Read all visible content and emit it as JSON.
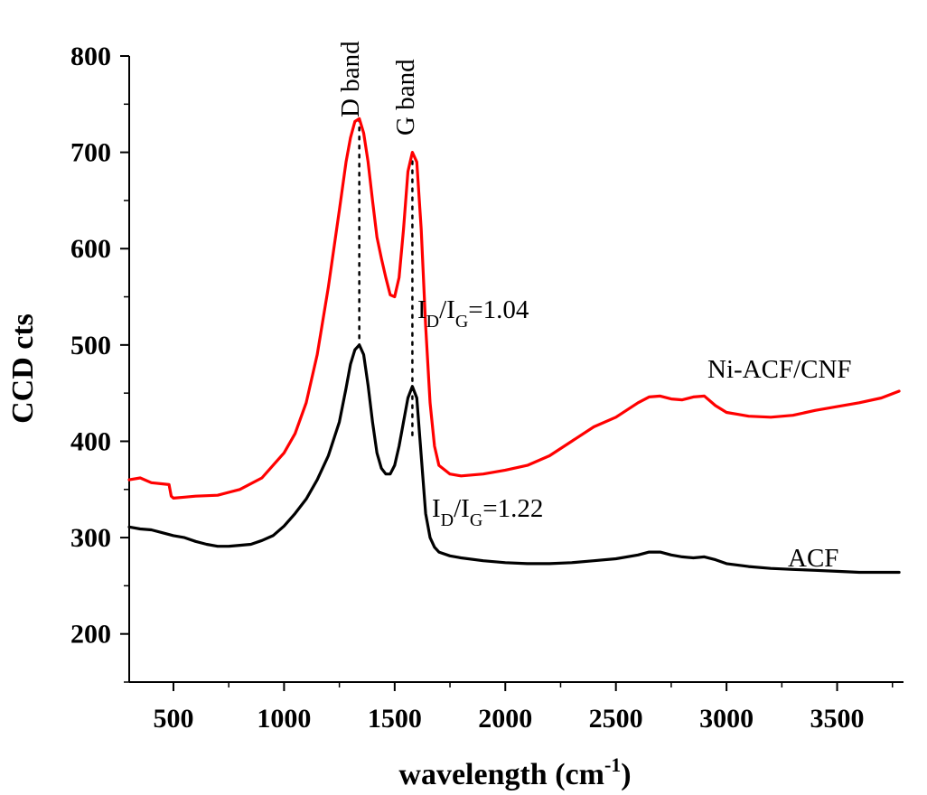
{
  "chart_data": {
    "type": "line",
    "xlabel": "wavelength (cm",
    "xlabel_sup": "-1",
    "xlabel_close": ")",
    "ylabel": "CCD cts",
    "xlim": [
      300,
      3800
    ],
    "ylim": [
      150,
      800
    ],
    "xticks": [
      500,
      1000,
      1500,
      2000,
      2500,
      3000,
      3500
    ],
    "xtick_labels": [
      "500",
      "1000",
      "1500",
      "2000",
      "2500",
      "3000",
      "3500"
    ],
    "yticks": [
      200,
      300,
      400,
      500,
      600,
      700,
      800
    ],
    "ytick_labels": [
      "200",
      "300",
      "400",
      "500",
      "600",
      "700",
      "800"
    ],
    "grid": false,
    "series": [
      {
        "name": "Ni-ACF/CNF",
        "color": "#ff0000",
        "x": [
          300,
          350,
          400,
          480,
          490,
          500,
          550,
          600,
          700,
          800,
          900,
          1000,
          1050,
          1100,
          1150,
          1200,
          1250,
          1280,
          1300,
          1320,
          1340,
          1360,
          1380,
          1400,
          1420,
          1440,
          1460,
          1480,
          1500,
          1520,
          1540,
          1560,
          1580,
          1600,
          1620,
          1640,
          1660,
          1680,
          1700,
          1750,
          1800,
          1900,
          2000,
          2100,
          2200,
          2300,
          2400,
          2500,
          2600,
          2650,
          2700,
          2750,
          2800,
          2850,
          2900,
          2950,
          3000,
          3050,
          3100,
          3200,
          3300,
          3400,
          3500,
          3600,
          3700,
          3780
        ],
        "y": [
          360,
          362,
          357,
          355,
          343,
          341,
          342,
          343,
          344,
          350,
          362,
          388,
          408,
          440,
          490,
          560,
          640,
          690,
          715,
          732,
          735,
          720,
          690,
          650,
          612,
          590,
          570,
          552,
          550,
          570,
          620,
          680,
          700,
          690,
          620,
          520,
          440,
          395,
          375,
          366,
          364,
          366,
          370,
          375,
          385,
          400,
          415,
          425,
          440,
          446,
          447,
          444,
          443,
          446,
          447,
          437,
          430,
          428,
          426,
          425,
          427,
          432,
          436,
          440,
          445,
          452
        ]
      },
      {
        "name": "ACF",
        "color": "#000000",
        "x": [
          300,
          350,
          400,
          450,
          500,
          550,
          600,
          650,
          700,
          750,
          800,
          850,
          900,
          950,
          1000,
          1050,
          1100,
          1150,
          1200,
          1250,
          1280,
          1300,
          1320,
          1340,
          1360,
          1380,
          1400,
          1420,
          1440,
          1460,
          1480,
          1500,
          1520,
          1540,
          1560,
          1580,
          1600,
          1620,
          1640,
          1660,
          1680,
          1700,
          1750,
          1800,
          1900,
          2000,
          2100,
          2200,
          2300,
          2400,
          2500,
          2600,
          2650,
          2700,
          2750,
          2800,
          2850,
          2900,
          2950,
          3000,
          3100,
          3200,
          3300,
          3400,
          3500,
          3600,
          3700,
          3780
        ],
        "y": [
          311,
          309,
          308,
          305,
          302,
          300,
          296,
          293,
          291,
          291,
          292,
          293,
          297,
          302,
          312,
          325,
          340,
          360,
          385,
          420,
          455,
          480,
          495,
          500,
          490,
          458,
          420,
          388,
          372,
          366,
          366,
          375,
          395,
          420,
          445,
          457,
          445,
          385,
          325,
          300,
          290,
          285,
          281,
          279,
          276,
          274,
          273,
          273,
          274,
          276,
          278,
          282,
          285,
          285,
          282,
          280,
          279,
          280,
          277,
          273,
          270,
          268,
          267,
          266,
          265,
          264,
          264,
          264
        ]
      }
    ],
    "annotations": {
      "ni_ratio_prefix": "I",
      "ni_ratio_sub1": "D",
      "ni_ratio_mid": "/I",
      "ni_ratio_sub2": "G",
      "ni_ratio_value": "=1.04",
      "acf_ratio_prefix": "I",
      "acf_ratio_sub1": "D",
      "acf_ratio_mid": "/I",
      "acf_ratio_sub2": "G",
      "acf_ratio_value": "=1.22",
      "d_band_label": "D band",
      "g_band_label": "G band",
      "d_band_x": 1340,
      "d_band_y_top": 735,
      "d_band_y_bottom": 500,
      "g_band_x": 1580,
      "g_band_y_top": 700,
      "g_band_y_bottom": 400
    }
  }
}
